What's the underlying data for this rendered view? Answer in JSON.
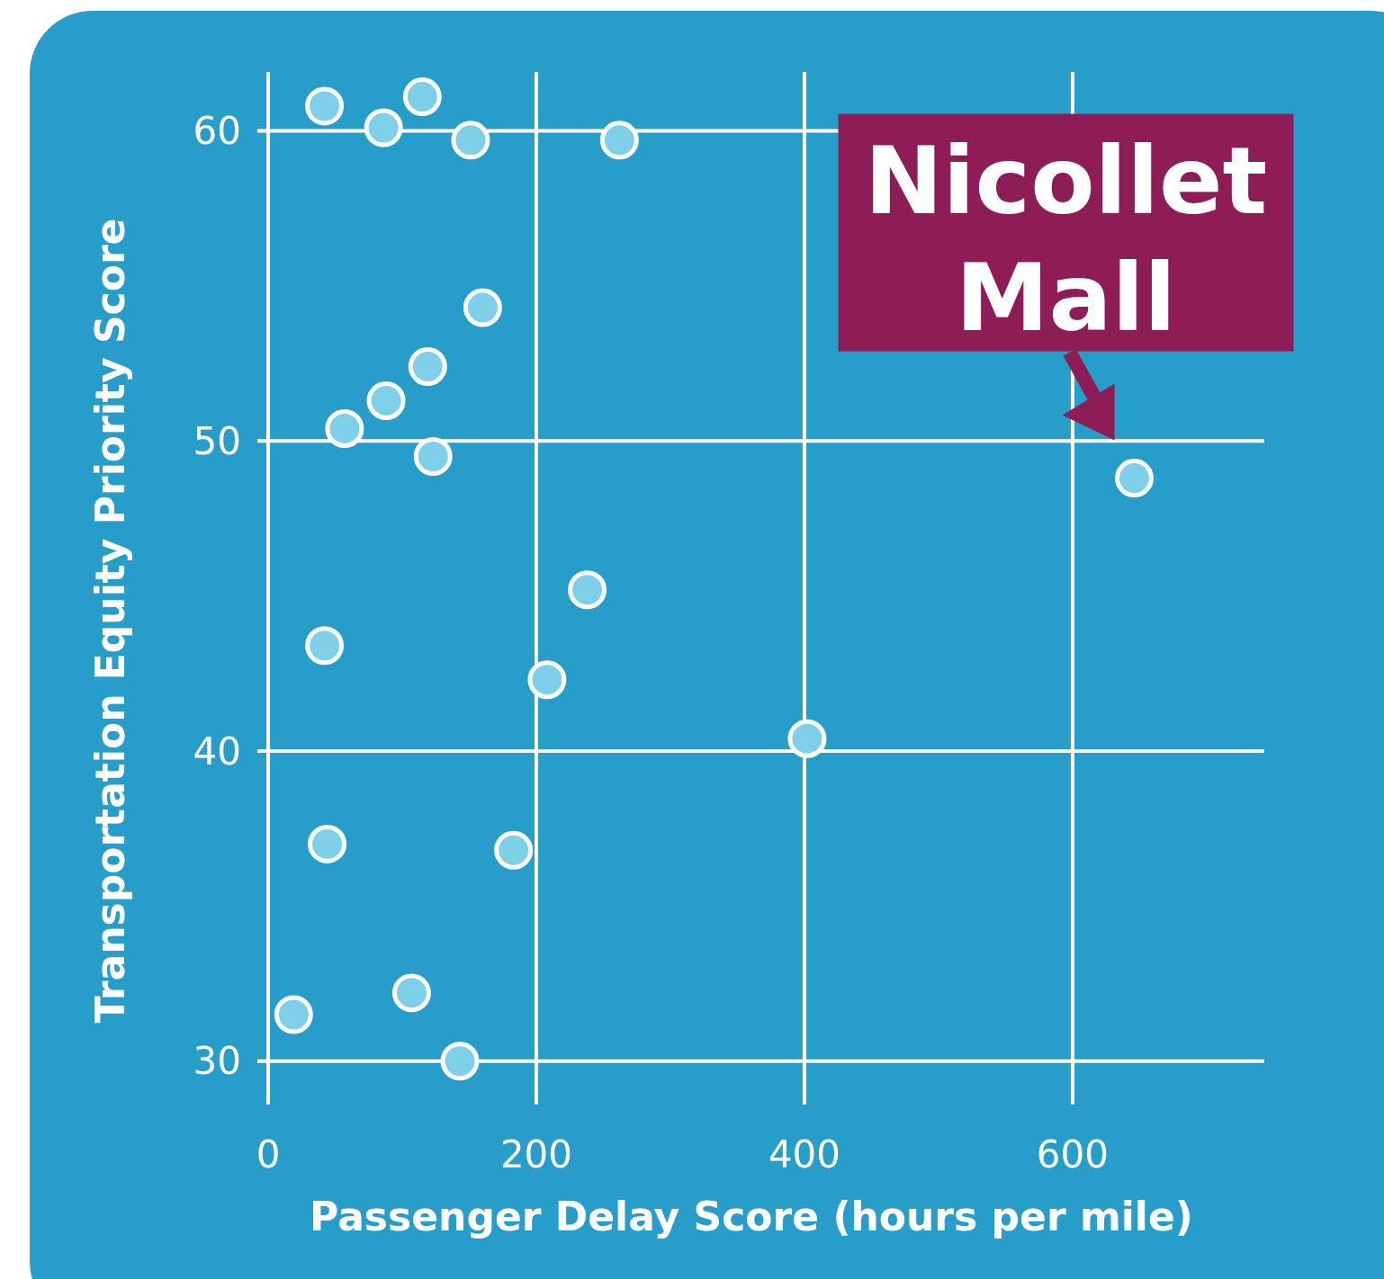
{
  "chart_data": {
    "type": "scatter",
    "xlabel": "Passenger Delay Score (hours per mile)",
    "ylabel": "Transportation Equity Priority Score",
    "x": [
      42,
      86,
      115,
      151,
      262,
      160,
      119,
      88,
      57,
      123,
      238,
      42,
      208,
      402,
      646,
      44,
      183,
      19,
      107,
      143
    ],
    "series": [
      {
        "color": "#7dd0e8",
        "values": [
          60.8,
          60.1,
          61.1,
          59.7,
          59.7,
          54.3,
          52.4,
          51.3,
          50.4,
          49.5,
          45.2,
          43.4,
          42.3,
          40.4,
          48.8,
          37.0,
          36.8,
          31.5,
          32.2,
          30.0
        ]
      }
    ],
    "xlim": [
      0,
      743
    ],
    "ylim": [
      28.6,
      61.9
    ],
    "xticks": [
      0,
      200,
      400,
      600
    ],
    "yticks": [
      30,
      40,
      50,
      60
    ],
    "grid": true,
    "marker": "circle",
    "annotations": [
      {
        "text": "Nicollet Mall",
        "x": 646,
        "y": 48.8
      }
    ]
  }
}
